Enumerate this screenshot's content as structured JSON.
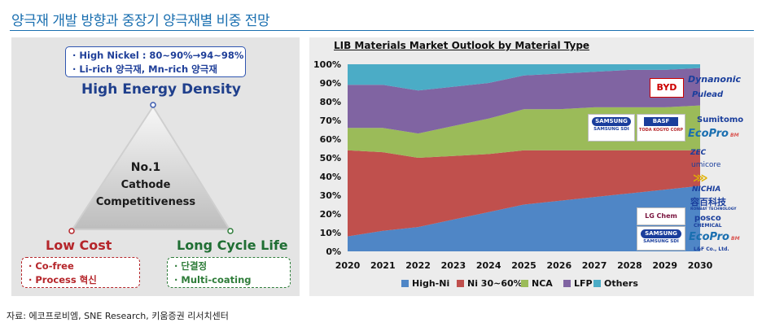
{
  "page": {
    "title": "양극재 개발 방향과 중장기 양극재별 비중 전망",
    "source": "자료: 에코프로비엠, SNE Research, 키움증권 리서치센터"
  },
  "diagram": {
    "high_nickel_line1": "· High Nickel : 80~90%→94~98%",
    "high_nickel_line2": "· Li-rich 양극재,  Mn-rich 양극재",
    "top_label": "High Energy Density",
    "center_line1": "No.1",
    "center_line2": "Cathode",
    "center_line3": "Competitiveness",
    "left_label": "Low Cost",
    "right_label": "Long Cycle Life",
    "left_items": [
      "· Co-free",
      "· Process 혁신"
    ],
    "right_items": [
      "· 단결정",
      "· Multi-coating"
    ]
  },
  "colors": {
    "high_ni": "#4f86c6",
    "ni_30_60": "#c0504d",
    "nca": "#9bbb59",
    "lfp": "#8064a2",
    "others": "#4bacc6"
  },
  "chart_data": {
    "type": "area",
    "title": "LIB Materials Market Outlook by Material Type",
    "stacked": true,
    "percent": true,
    "x": [
      "2020",
      "2021",
      "2022",
      "2023",
      "2024",
      "2025",
      "2026",
      "2027",
      "2028",
      "2029",
      "2030"
    ],
    "ylim": [
      0,
      100
    ],
    "yticks": [
      "0%",
      "10%",
      "20%",
      "30%",
      "40%",
      "50%",
      "60%",
      "70%",
      "80%",
      "90%",
      "100%"
    ],
    "series": [
      {
        "name": "High-Ni",
        "values": [
          8,
          11,
          13,
          17,
          21,
          25,
          27,
          29,
          31,
          33,
          35
        ]
      },
      {
        "name": "Ni 30~60%",
        "values": [
          46,
          42,
          37,
          34,
          31,
          29,
          27,
          25,
          23,
          21,
          19
        ]
      },
      {
        "name": "NCA",
        "values": [
          12,
          13,
          13,
          16,
          19,
          22,
          22,
          23,
          23,
          23,
          24
        ]
      },
      {
        "name": "LFP",
        "values": [
          23,
          23,
          23,
          21,
          19,
          18,
          19,
          19,
          20,
          20,
          20
        ]
      },
      {
        "name": "Others",
        "values": [
          11,
          11,
          14,
          12,
          10,
          6,
          5,
          4,
          3,
          3,
          2
        ]
      }
    ],
    "legend_position": "bottom"
  },
  "logos": {
    "byd": "BYD",
    "dynanonic": "Dynanonic",
    "pulead": "Pulead",
    "samsung1": "SAMSUNG",
    "samsung1_sub": "SAMSUNG SDI",
    "basf": "BASF",
    "basf_sub": "TODA KOGYO CORP",
    "sumitomo": "Sumitomo",
    "ecopro1": "EcoPro",
    "ecopro1_sub": "BM",
    "zec": "ZEC",
    "umicore": "umicore",
    "nichia": "NICHIA",
    "ronbay": "容百科技",
    "ronbay_sub": "RONBAY TECHNOLOGY",
    "lgchem": "LG Chem",
    "samsung2": "SAMSUNG",
    "samsung2_sub": "SAMSUNG SDI",
    "posco": "posco",
    "posco_sub": "CHEMICAL",
    "ecopro2": "EcoPro",
    "ecopro2_sub": "BM",
    "lf": "L&F Co., Ltd."
  }
}
